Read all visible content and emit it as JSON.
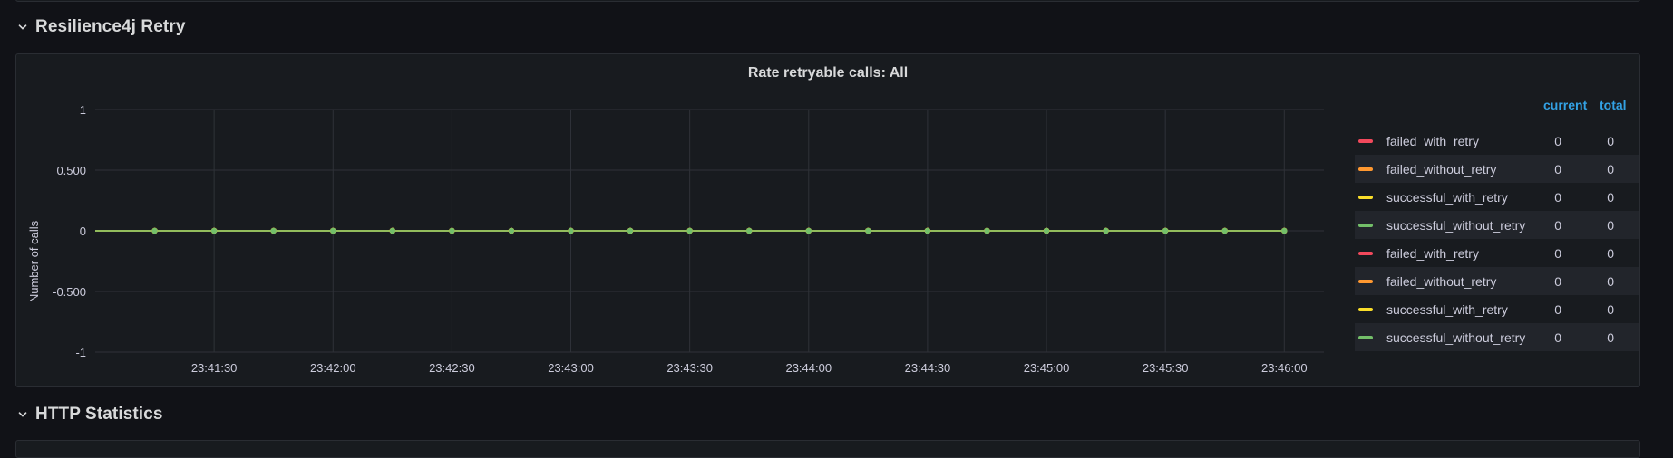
{
  "rows": {
    "retry_row_title": "Resilience4j Retry",
    "http_row_title": "HTTP Statistics"
  },
  "panel": {
    "title": "Rate retryable calls: All"
  },
  "legend": {
    "current_header": "current",
    "total_header": "total",
    "items": [
      {
        "name": "failed_with_retry",
        "color": "#f2495c",
        "current": "0",
        "total": "0"
      },
      {
        "name": "failed_without_retry",
        "color": "#ff9830",
        "current": "0",
        "total": "0"
      },
      {
        "name": "successful_with_retry",
        "color": "#fade2a",
        "current": "0",
        "total": "0"
      },
      {
        "name": "successful_without_retry",
        "color": "#73bf69",
        "current": "0",
        "total": "0"
      },
      {
        "name": "failed_with_retry",
        "color": "#f2495c",
        "current": "0",
        "total": "0"
      },
      {
        "name": "failed_without_retry",
        "color": "#ff9830",
        "current": "0",
        "total": "0"
      },
      {
        "name": "successful_with_retry",
        "color": "#fade2a",
        "current": "0",
        "total": "0"
      },
      {
        "name": "successful_without_retry",
        "color": "#73bf69",
        "current": "0",
        "total": "0"
      }
    ]
  },
  "chart_data": {
    "type": "line",
    "title": "Rate retryable calls: All",
    "ylabel": "Number of calls",
    "xlabel": "",
    "ylim": [
      -1,
      1
    ],
    "y_ticks": [
      1,
      0.5,
      0,
      -0.5,
      -1
    ],
    "y_tick_labels": [
      "1",
      "0.500",
      "0",
      "-0.500",
      "-1"
    ],
    "x_range": [
      "23:41:00",
      "23:46:10"
    ],
    "x_ticks": [
      "23:41:30",
      "23:42:00",
      "23:42:30",
      "23:43:00",
      "23:43:30",
      "23:44:00",
      "23:44:30",
      "23:45:00",
      "23:45:30",
      "23:46:00"
    ],
    "x": [
      "23:41:15",
      "23:41:30",
      "23:41:45",
      "23:42:00",
      "23:42:15",
      "23:42:30",
      "23:42:45",
      "23:43:00",
      "23:43:15",
      "23:43:30",
      "23:43:45",
      "23:44:00",
      "23:44:15",
      "23:44:30",
      "23:44:45",
      "23:45:00",
      "23:45:15",
      "23:45:30",
      "23:45:45",
      "23:46:00"
    ],
    "series": [
      {
        "name": "failed_with_retry",
        "color": "#f2495c",
        "values": [
          0,
          0,
          0,
          0,
          0,
          0,
          0,
          0,
          0,
          0,
          0,
          0,
          0,
          0,
          0,
          0,
          0,
          0,
          0,
          0
        ]
      },
      {
        "name": "failed_without_retry",
        "color": "#ff9830",
        "values": [
          0,
          0,
          0,
          0,
          0,
          0,
          0,
          0,
          0,
          0,
          0,
          0,
          0,
          0,
          0,
          0,
          0,
          0,
          0,
          0
        ]
      },
      {
        "name": "successful_with_retry",
        "color": "#fade2a",
        "values": [
          0,
          0,
          0,
          0,
          0,
          0,
          0,
          0,
          0,
          0,
          0,
          0,
          0,
          0,
          0,
          0,
          0,
          0,
          0,
          0
        ]
      },
      {
        "name": "successful_without_retry",
        "color": "#73bf69",
        "values": [
          0,
          0,
          0,
          0,
          0,
          0,
          0,
          0,
          0,
          0,
          0,
          0,
          0,
          0,
          0,
          0,
          0,
          0,
          0,
          0
        ]
      },
      {
        "name": "failed_with_retry",
        "color": "#f2495c",
        "values": [
          0,
          0,
          0,
          0,
          0,
          0,
          0,
          0,
          0,
          0,
          0,
          0,
          0,
          0,
          0,
          0,
          0,
          0,
          0,
          0
        ]
      },
      {
        "name": "failed_without_retry",
        "color": "#ff9830",
        "values": [
          0,
          0,
          0,
          0,
          0,
          0,
          0,
          0,
          0,
          0,
          0,
          0,
          0,
          0,
          0,
          0,
          0,
          0,
          0,
          0
        ]
      },
      {
        "name": "successful_with_retry",
        "color": "#fade2a",
        "values": [
          0,
          0,
          0,
          0,
          0,
          0,
          0,
          0,
          0,
          0,
          0,
          0,
          0,
          0,
          0,
          0,
          0,
          0,
          0,
          0
        ]
      },
      {
        "name": "successful_without_retry",
        "color": "#73bf69",
        "values": [
          0,
          0,
          0,
          0,
          0,
          0,
          0,
          0,
          0,
          0,
          0,
          0,
          0,
          0,
          0,
          0,
          0,
          0,
          0,
          0
        ]
      }
    ],
    "grid": true,
    "legend_position": "right"
  }
}
